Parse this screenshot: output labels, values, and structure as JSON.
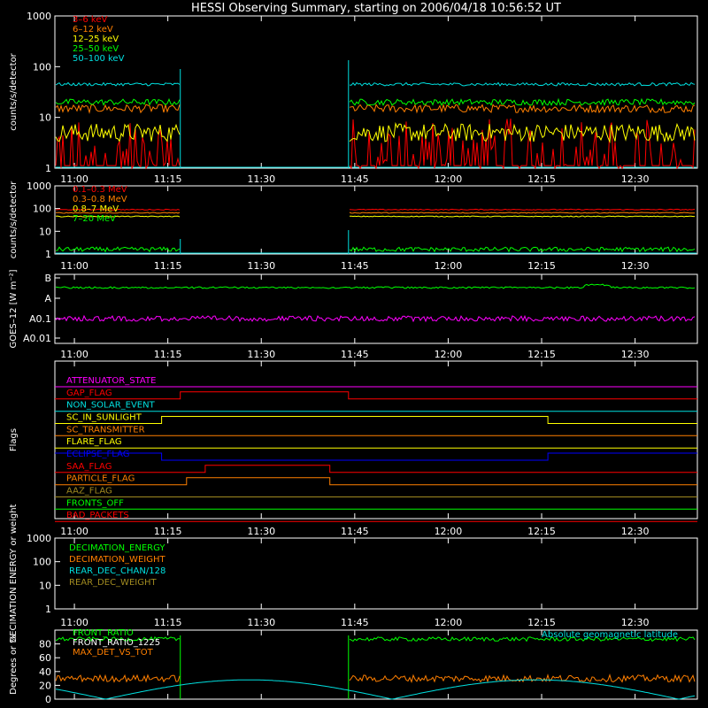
{
  "title": "HESSI Observing Summary, starting on 2006/04/18 10:56:52 UT",
  "time_axis": {
    "start": "10:56:52",
    "end": "12:40",
    "ticks": [
      "11:00",
      "11:15",
      "11:30",
      "11:45",
      "12:00",
      "12:15",
      "12:30"
    ]
  },
  "colors": {
    "background": "#000000",
    "axes": "#ffffff",
    "red": "#ff0000",
    "orange": "#ff7f00",
    "yellow": "#ffff00",
    "green": "#00ff00",
    "cyan": "#00e0e0",
    "magenta": "#ff00ff",
    "blue": "#0000ff",
    "olive": "#a08a20"
  },
  "chart_data": [
    {
      "type": "line",
      "name": "panel-xray-low",
      "ylabel": "counts/s/detector",
      "yscale": "log",
      "ylim": [
        1,
        1000
      ],
      "yticks": [
        "1",
        "10",
        "100",
        "1000"
      ],
      "data_gap": [
        "11:17",
        "11:44"
      ],
      "series": [
        {
          "name": "3–6 keV",
          "color": "#ff0000",
          "level": 2.5,
          "noise": 0.6
        },
        {
          "name": "6–12 keV",
          "color": "#ff7f00",
          "level": 15,
          "noise": 0.08
        },
        {
          "name": "12–25 keV",
          "color": "#ffff00",
          "level": 5,
          "noise": 0.18
        },
        {
          "name": "25–50 keV",
          "color": "#00ff00",
          "level": 20,
          "noise": 0.06
        },
        {
          "name": "50–100 keV",
          "color": "#00e0e0",
          "level": 45,
          "noise": 0.03
        }
      ]
    },
    {
      "type": "line",
      "name": "panel-gamma",
      "ylabel": "counts/s/detector",
      "yscale": "log",
      "ylim": [
        1,
        1000
      ],
      "yticks": [
        "1",
        "10",
        "100",
        "1000"
      ],
      "data_gap": [
        "11:17",
        "11:44"
      ],
      "series": [
        {
          "name": "0.1–0.3 MeV",
          "color": "#ff0000",
          "level": 90,
          "noise": 0.02
        },
        {
          "name": "0.3–0.8 MeV",
          "color": "#ff7f00",
          "level": 65,
          "noise": 0.02
        },
        {
          "name": "0.8–7 MeV",
          "color": "#ffff00",
          "level": 45,
          "noise": 0.02
        },
        {
          "name": "7–20 MeV",
          "color": "#00ff00",
          "level": 1.6,
          "noise": 0.1
        }
      ]
    },
    {
      "type": "line",
      "name": "panel-goes",
      "ylabel": "GOES–12 [W m⁻²]",
      "yticks": [
        "A0.01",
        "A0.1",
        "A",
        "B"
      ],
      "series": [
        {
          "name": "GOES long",
          "color": "#00ff00",
          "level": "B-",
          "noise": 0.02
        },
        {
          "name": "GOES short",
          "color": "#ff00ff",
          "level": "A0.1",
          "noise": 0.08
        }
      ]
    },
    {
      "type": "line",
      "name": "panel-flags",
      "ylabel": "Flags",
      "flags": [
        {
          "name": "ATTENUATOR_STATE",
          "color": "#ff00ff",
          "segments": [
            [
              "10:56:52",
              "12:40",
              0
            ]
          ]
        },
        {
          "name": "GAP_FLAG",
          "color": "#ff0000",
          "segments": [
            [
              "10:56:52",
              "11:17",
              0
            ],
            [
              "11:17",
              "11:44",
              1
            ],
            [
              "11:44",
              "12:40",
              0
            ]
          ]
        },
        {
          "name": "NON_SOLAR_EVENT",
          "color": "#00e0e0",
          "segments": [
            [
              "10:56:52",
              "12:40",
              0
            ]
          ]
        },
        {
          "name": "SC_IN_SUNLIGHT",
          "color": "#ffff00",
          "segments": [
            [
              "10:56:52",
              "11:14",
              0
            ],
            [
              "11:14",
              "12:16",
              1
            ],
            [
              "12:16",
              "12:40",
              0
            ]
          ]
        },
        {
          "name": "SC_TRANSMITTER",
          "color": "#ff7f00",
          "segments": [
            [
              "10:56:52",
              "12:40",
              0
            ]
          ]
        },
        {
          "name": "FLARE_FLAG",
          "color": "#ffff00",
          "segments": [
            [
              "10:56:52",
              "12:40",
              0
            ]
          ]
        },
        {
          "name": "ECLIPSE_FLAG",
          "color": "#0000ff",
          "segments": [
            [
              "10:56:52",
              "11:14",
              1
            ],
            [
              "11:14",
              "12:16",
              0
            ],
            [
              "12:16",
              "12:40",
              1
            ]
          ]
        },
        {
          "name": "SAA_FLAG",
          "color": "#ff0000",
          "segments": [
            [
              "10:56:52",
              "11:21",
              0
            ],
            [
              "11:21",
              "11:41",
              1
            ],
            [
              "11:41",
              "12:40",
              0
            ]
          ]
        },
        {
          "name": "PARTICLE_FLAG",
          "color": "#ff7f00",
          "segments": [
            [
              "10:56:52",
              "11:18",
              0
            ],
            [
              "11:18",
              "11:41",
              1
            ],
            [
              "11:41",
              "12:40",
              0
            ]
          ]
        },
        {
          "name": "AAZ_FLAG",
          "color": "#a08a20",
          "segments": [
            [
              "10:56:52",
              "12:40",
              0
            ]
          ]
        },
        {
          "name": "FRONTS_OFF",
          "color": "#00ff00",
          "segments": [
            [
              "10:56:52",
              "12:40",
              0
            ]
          ]
        },
        {
          "name": "BAD_PACKETS",
          "color": "#ff0000",
          "segments": [
            [
              "10:56:52",
              "12:40",
              0
            ]
          ]
        }
      ]
    },
    {
      "type": "line",
      "name": "panel-decimation",
      "ylabel": "DECIMATION ENERGY or weight",
      "yscale": "log",
      "ylim": [
        1,
        1000
      ],
      "yticks": [
        "1",
        "10",
        "100",
        "1000"
      ],
      "series": [
        {
          "name": "DECIMATION_ENERGY",
          "color": "#00ff00"
        },
        {
          "name": "DECIMATION_WEIGHT",
          "color": "#ff7f00"
        },
        {
          "name": "REAR_DEC_CHAN/128",
          "color": "#00e0e0"
        },
        {
          "name": "REAR_DEC_WEIGHT",
          "color": "#a08a20"
        }
      ]
    },
    {
      "type": "line",
      "name": "panel-ratio",
      "ylabel": "Degrees or %",
      "ylim": [
        0,
        100
      ],
      "yticks": [
        "0",
        "20",
        "40",
        "60",
        "80"
      ],
      "data_gap": [
        "11:17",
        "11:44"
      ],
      "series": [
        {
          "name": "FRONT_RATIO",
          "color": "#00ff00",
          "level": 87,
          "noise": 3
        },
        {
          "name": "FRONT_RATIO_1225",
          "color": "#ffffff",
          "level": 86,
          "noise": 3
        },
        {
          "name": "MAX_DET_VS_TOT",
          "color": "#ff7f00",
          "level": 30,
          "noise": 5
        },
        {
          "name": "Absolute geomagnetic latitude",
          "color": "#00e0e0"
        }
      ]
    }
  ]
}
